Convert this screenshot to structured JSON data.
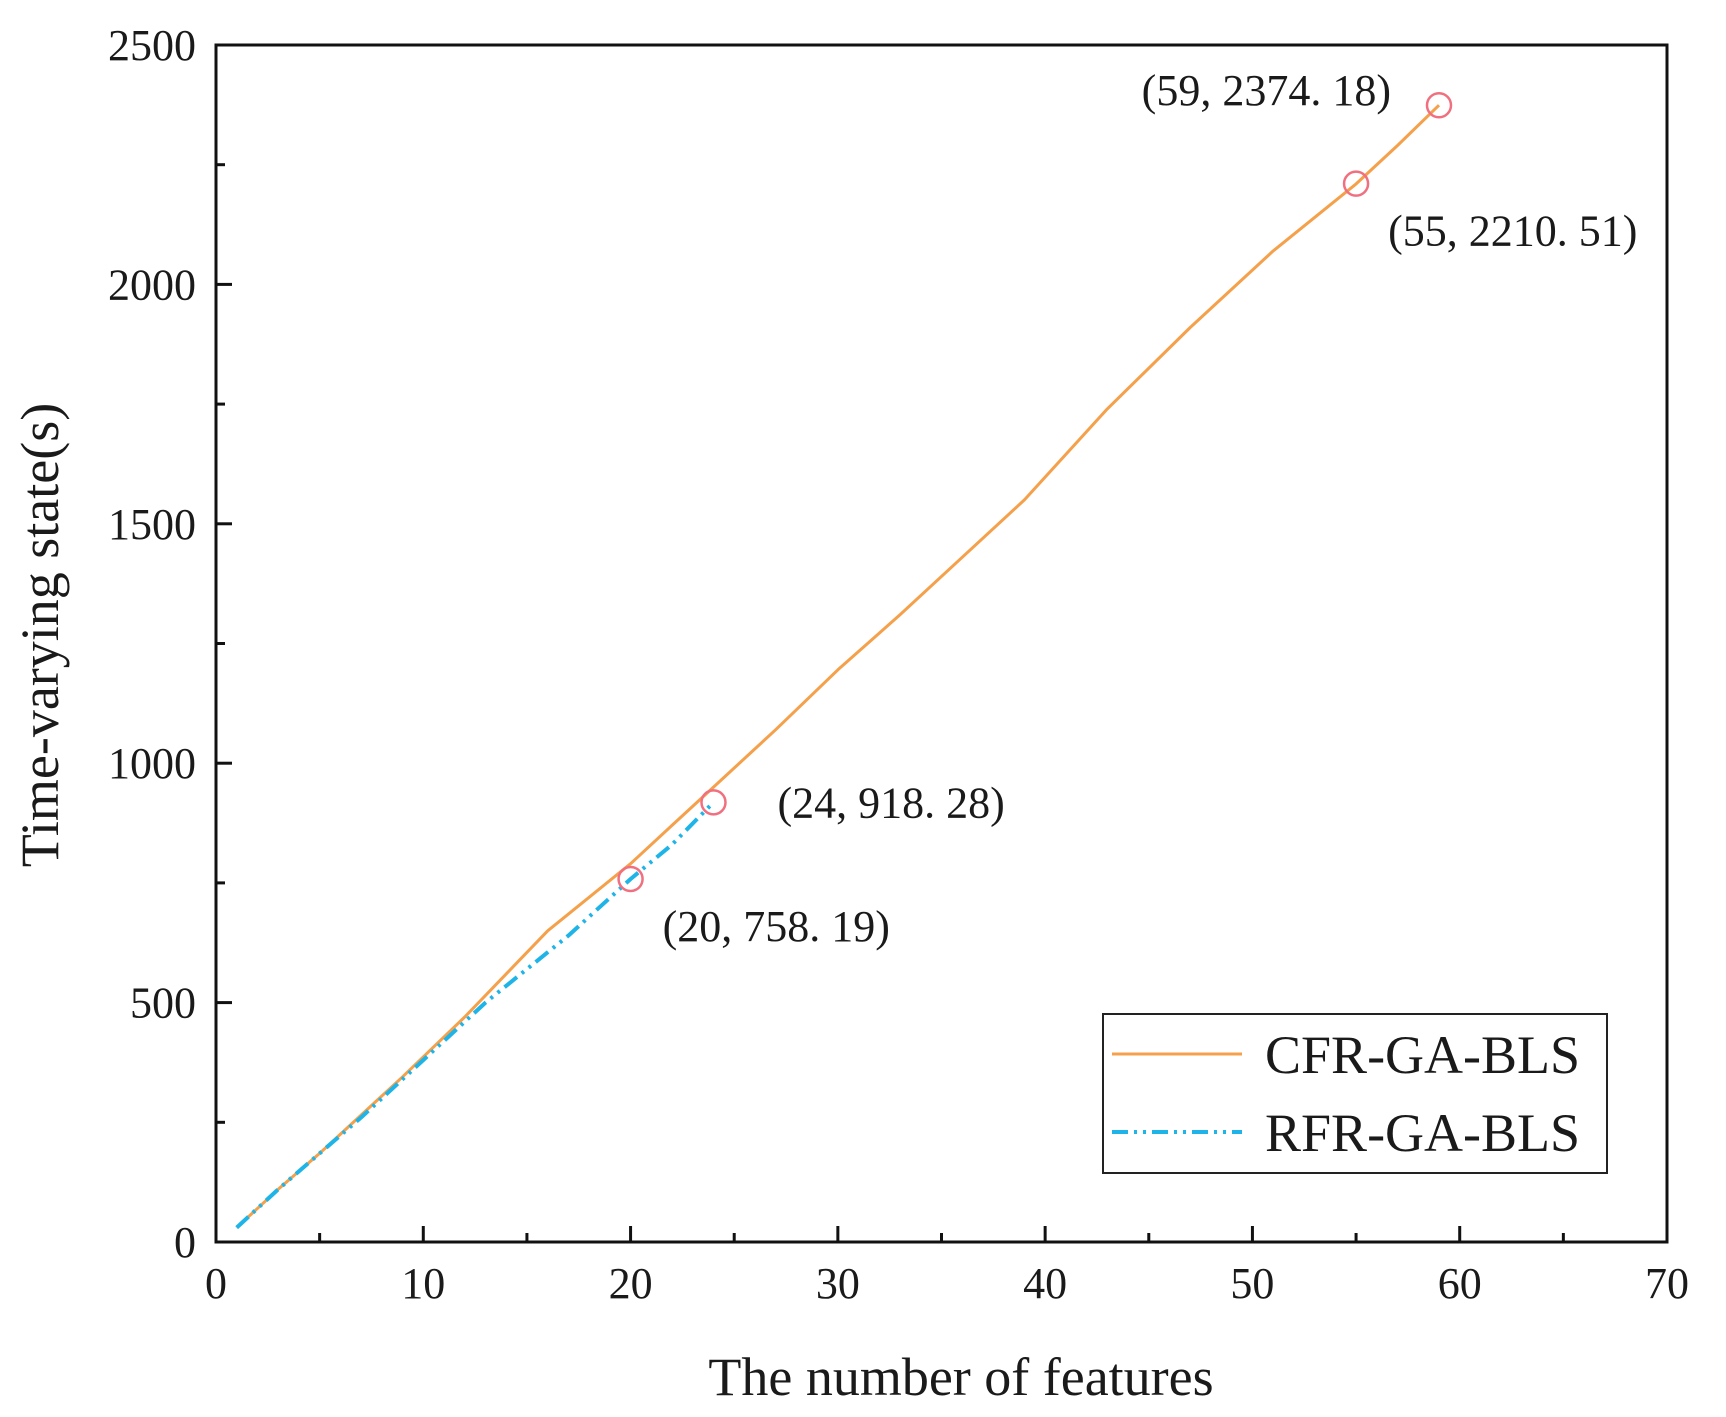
{
  "chart_data": {
    "type": "line",
    "title": "",
    "xlabel": "The number of features",
    "ylabel": "Time-varying state(s)",
    "xlim": [
      0,
      70
    ],
    "ylim": [
      0,
      2500
    ],
    "xticks": [
      0,
      10,
      20,
      30,
      40,
      50,
      60,
      70
    ],
    "yticks": [
      0,
      500,
      1000,
      1500,
      2000,
      2500
    ],
    "xtick_labels": [
      "0",
      "10",
      "20",
      "30",
      "40",
      "50",
      "60",
      "70"
    ],
    "ytick_labels": [
      "0",
      "500",
      "1000",
      "1500",
      "2000",
      "2500"
    ],
    "grid": false,
    "legend_position": "bottom-right",
    "series": [
      {
        "name": "CFR-GA-BLS",
        "color": "#f5a04a",
        "style": "solid",
        "x": [
          1,
          3,
          5,
          7,
          9,
          12,
          14,
          16,
          18,
          20,
          22,
          24,
          27,
          30,
          33,
          36,
          39,
          43,
          47,
          51,
          55,
          57,
          59
        ],
        "y": [
          30,
          110,
          185,
          265,
          345,
          470,
          560,
          650,
          720,
          790,
          870,
          950,
          1070,
          1195,
          1310,
          1430,
          1550,
          1740,
          1910,
          2070,
          2210,
          2290,
          2374.18
        ]
      },
      {
        "name": "RFR-GA-BLS",
        "color": "#1fb4e8",
        "style": "dash-dot-dot",
        "x": [
          1,
          3,
          5,
          7,
          9,
          11,
          13,
          15,
          17,
          20,
          22,
          24
        ],
        "y": [
          30,
          110,
          185,
          260,
          340,
          420,
          500,
          570,
          640,
          758.19,
          830,
          918.28
        ]
      }
    ],
    "annotations": [
      {
        "x": 59,
        "y": 2374.18,
        "label": "(59, 2374. 18)",
        "position": "left"
      },
      {
        "x": 55,
        "y": 2210.51,
        "label": "(55, 2210. 51)",
        "position": "below-right"
      },
      {
        "x": 24,
        "y": 918.28,
        "label": "(24, 918. 28)",
        "position": "right"
      },
      {
        "x": 20,
        "y": 758.19,
        "label": "(20, 758. 19)",
        "position": "below-right"
      }
    ],
    "marker_color": "#f07080"
  }
}
